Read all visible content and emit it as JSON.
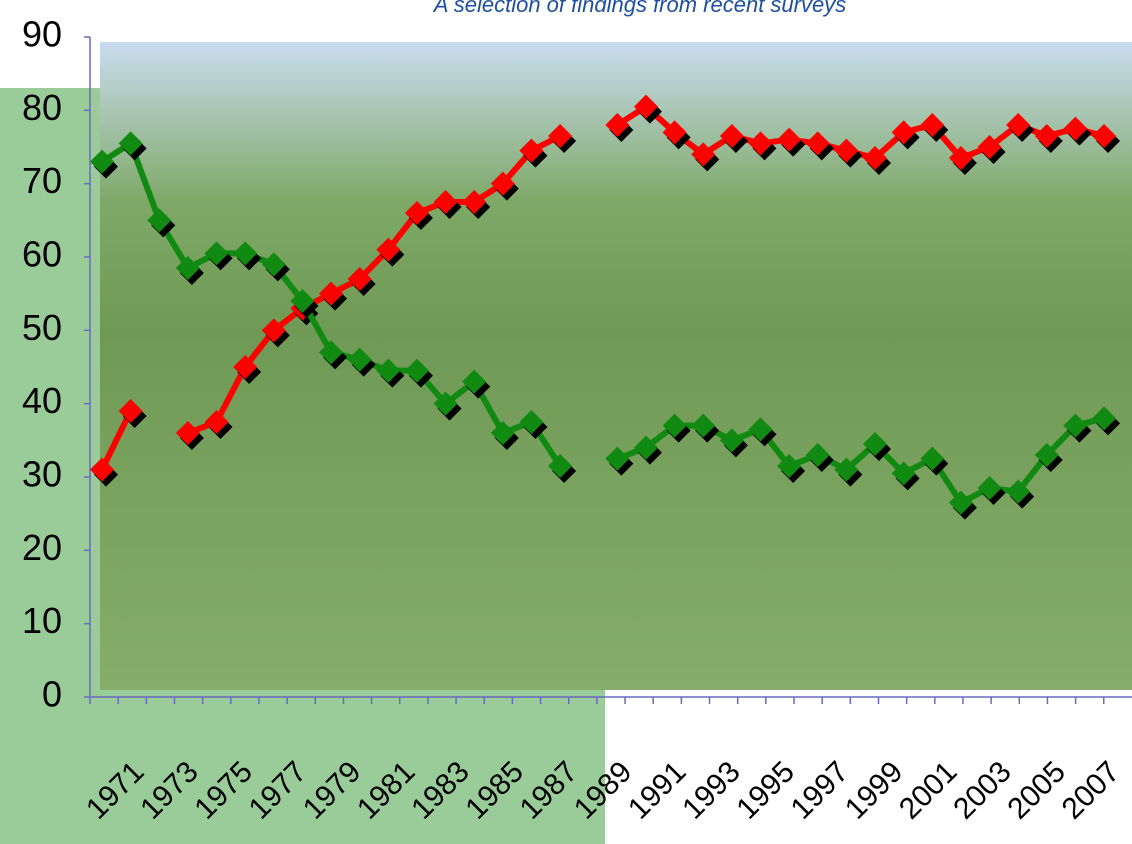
{
  "chart_data": {
    "type": "line",
    "title": "A selection of findings from recent surveys",
    "categories": [
      "1971",
      null,
      "1973",
      null,
      "1975",
      null,
      "1977",
      null,
      "1979",
      null,
      "1981",
      null,
      "1983",
      null,
      "1985",
      null,
      "1987",
      null,
      "1989",
      null,
      "1991",
      null,
      "1993",
      null,
      "1995",
      null,
      "1997",
      null,
      "1999",
      null,
      "2001",
      null,
      "2003",
      null,
      "2005",
      null,
      "2007"
    ],
    "series": [
      {
        "color": "#ff0000",
        "values": [
          31,
          39,
          null,
          36,
          37.5,
          45,
          50,
          53,
          55,
          57,
          61,
          66,
          67.5,
          67.5,
          70,
          74.5,
          76.5,
          null,
          78,
          80.5,
          77,
          74,
          76.5,
          75.5,
          76,
          75.5,
          74.5,
          73.5,
          77,
          78,
          73.5,
          75,
          78,
          76.5,
          77.5,
          76.5,
          null
        ]
      },
      {
        "color": "#118a11",
        "values": [
          73,
          75.5,
          65,
          58.5,
          60.5,
          60.5,
          59,
          54,
          47,
          46,
          44.5,
          44.5,
          40,
          43,
          36,
          37.5,
          31.5,
          null,
          32.5,
          34,
          37,
          37,
          35,
          36.5,
          31.5,
          33,
          31,
          34.5,
          30.5,
          32.5,
          26.5,
          28.5,
          28,
          33,
          37,
          38,
          null
        ]
      }
    ],
    "ylim": [
      0,
      90
    ],
    "yticks": [
      0,
      10,
      20,
      30,
      40,
      50,
      60,
      70,
      80,
      90
    ]
  }
}
